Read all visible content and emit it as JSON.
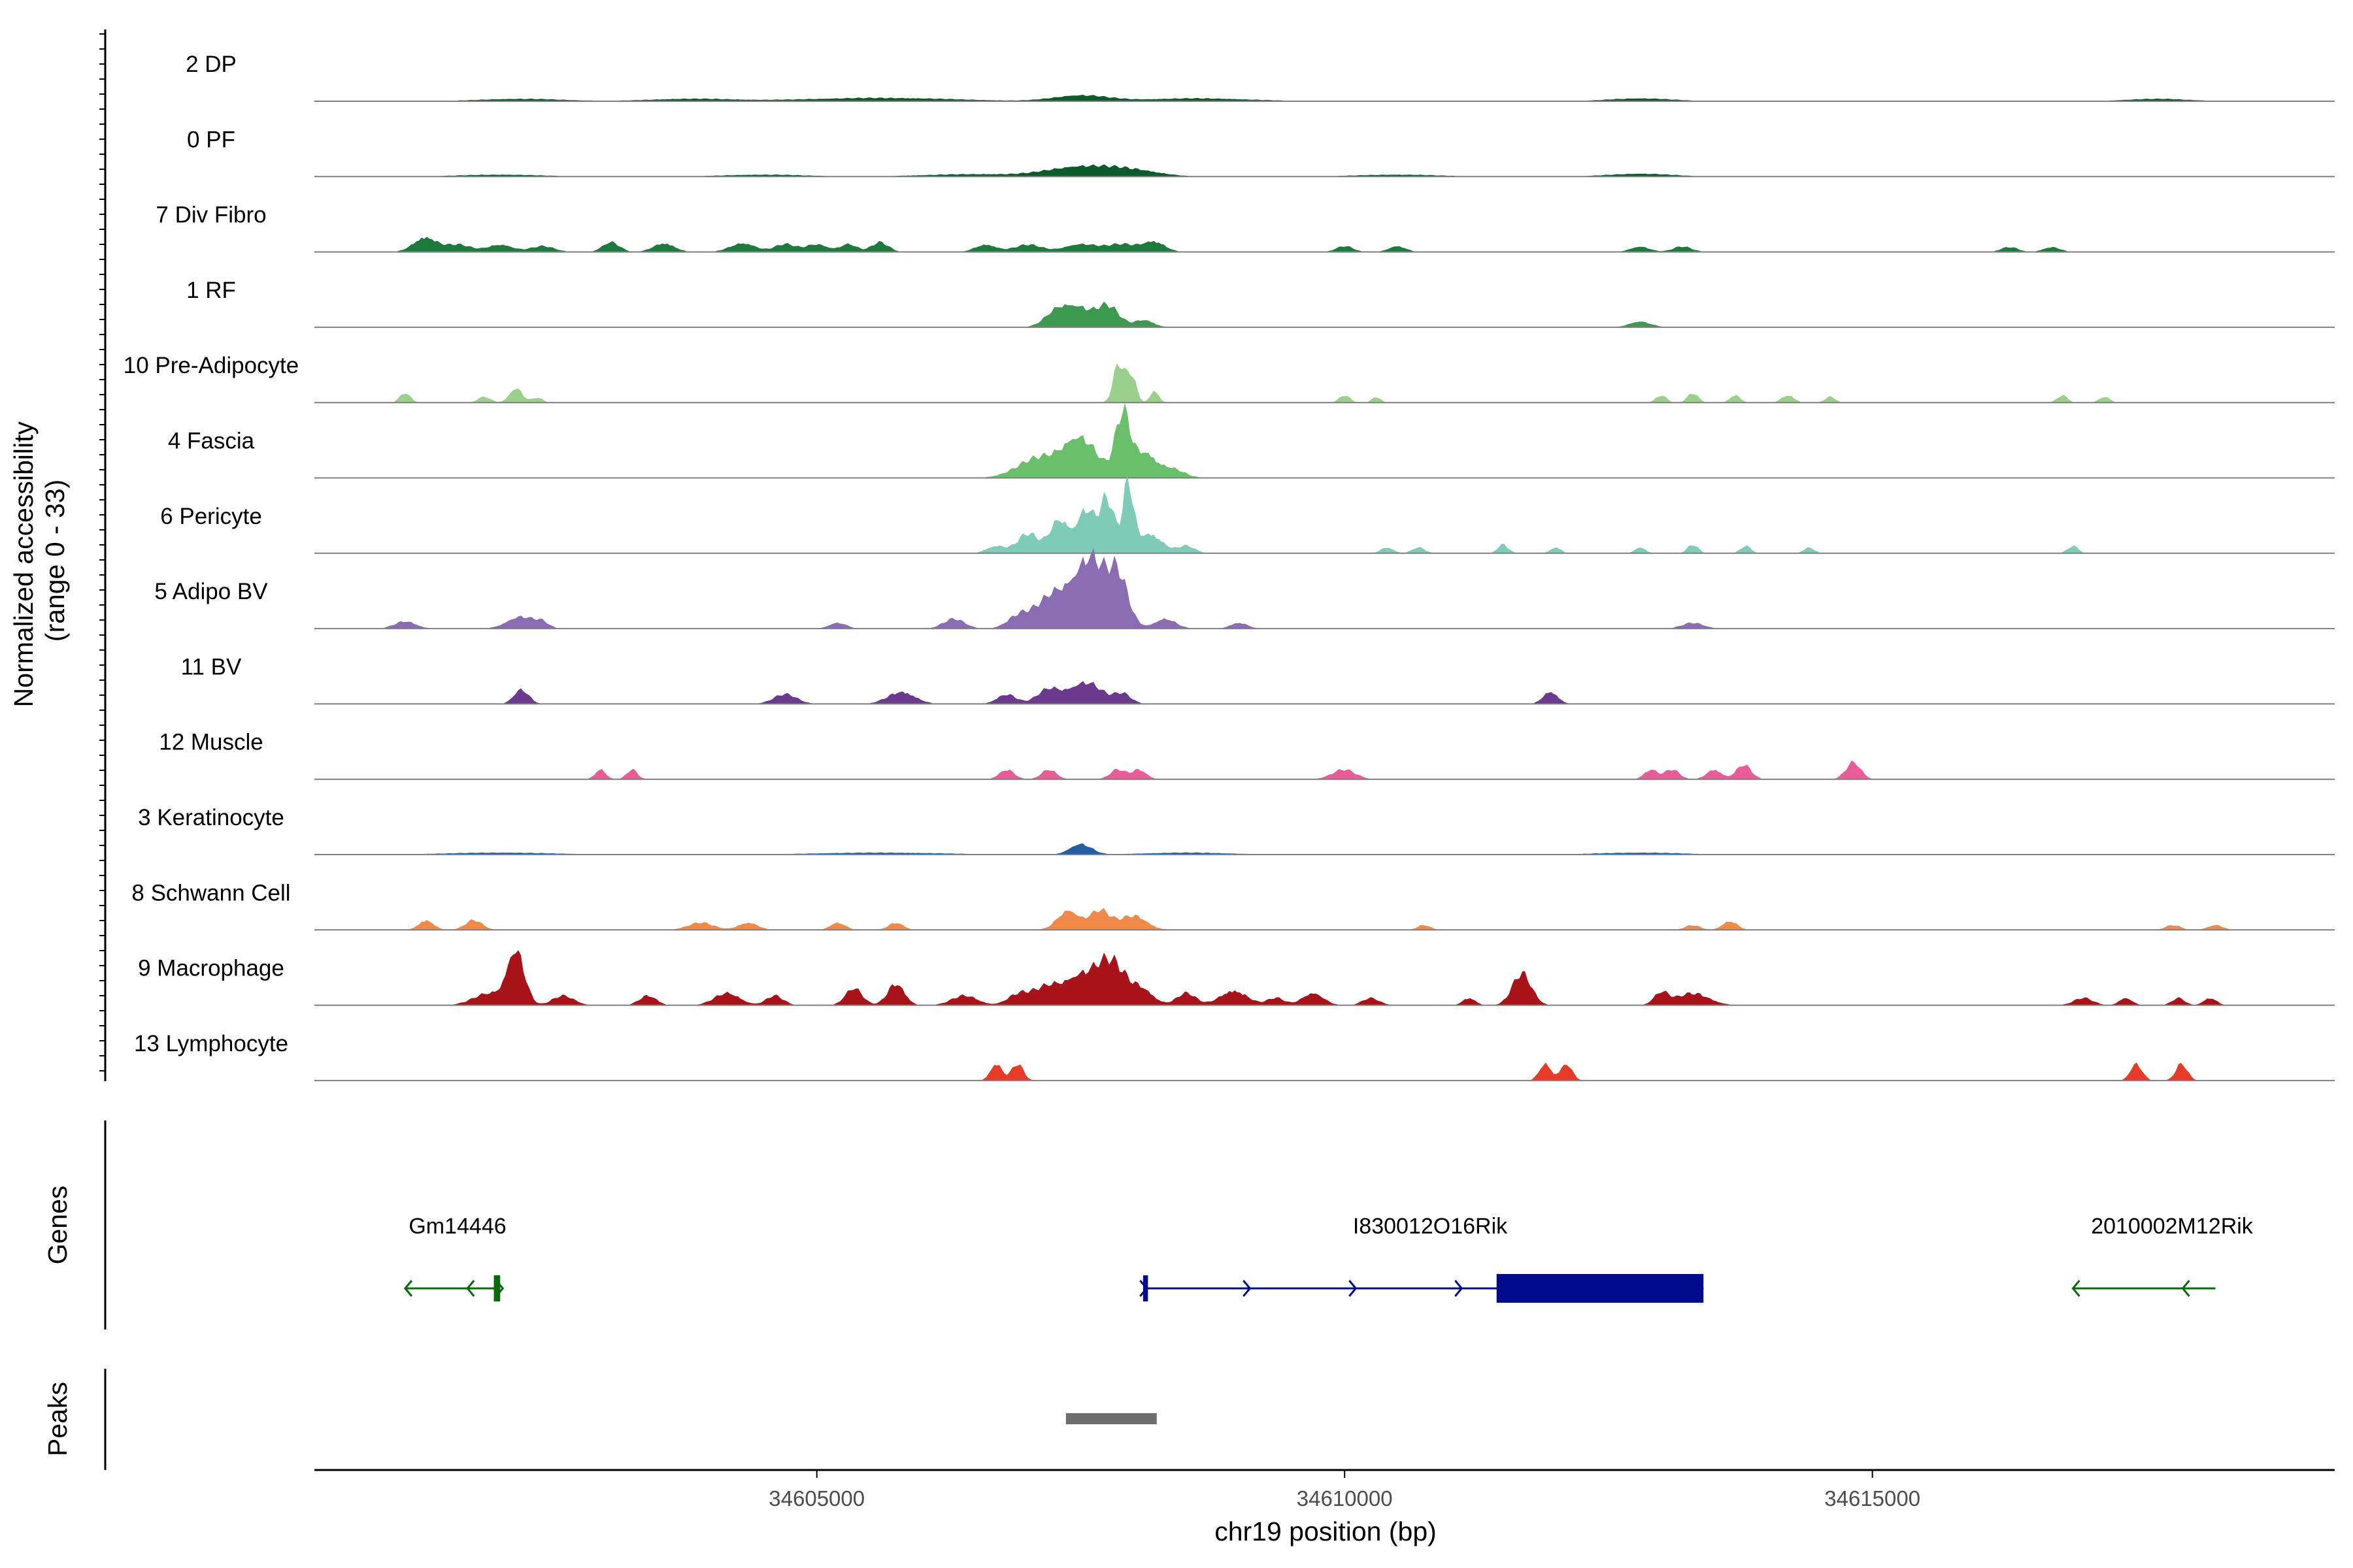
{
  "chart_data": {
    "type": "area",
    "title": "",
    "xlabel": "chr19 position (bp)",
    "ylabel_line1": "Normalized accessibility",
    "ylabel_line2": "(range 0 - 33)",
    "y_range": [
      0,
      33
    ],
    "x_range": [
      34600240,
      34619380
    ],
    "x_ticks": [
      34605000,
      34610000,
      34615000
    ],
    "x_tick_labels": [
      "34605000",
      "34610000",
      "34615000"
    ],
    "tracks": [
      {
        "name": "2 DP",
        "color": "#0b5c2a",
        "peaks": [
          [
            34602200,
            400,
            0.5
          ],
          [
            34603800,
            400,
            0.5
          ],
          [
            34605600,
            700,
            0.7
          ],
          [
            34607500,
            250,
            1.2
          ],
          [
            34608600,
            500,
            0.6
          ],
          [
            34612800,
            300,
            0.6
          ],
          [
            34617700,
            300,
            0.5
          ]
        ]
      },
      {
        "name": "0 PF",
        "color": "#0b5c2a",
        "peaks": [
          [
            34602000,
            400,
            0.4
          ],
          [
            34604500,
            400,
            0.4
          ],
          [
            34606500,
            500,
            0.5
          ],
          [
            34607500,
            300,
            2.0
          ],
          [
            34608000,
            250,
            1.2
          ],
          [
            34610500,
            400,
            0.4
          ],
          [
            34612800,
            300,
            0.6
          ]
        ]
      },
      {
        "name": "7 Div Fibro",
        "color": "#1c7a3c",
        "peaks": [
          [
            34601290,
            110,
            3.0
          ],
          [
            34601600,
            120,
            1.5
          ],
          [
            34602000,
            120,
            1.5
          ],
          [
            34602400,
            110,
            1.2
          ],
          [
            34603050,
            80,
            2.0
          ],
          [
            34603550,
            100,
            1.8
          ],
          [
            34604300,
            120,
            1.8
          ],
          [
            34604700,
            100,
            1.6
          ],
          [
            34605000,
            100,
            1.6
          ],
          [
            34605300,
            80,
            1.6
          ],
          [
            34605600,
            80,
            2.0
          ],
          [
            34606600,
            100,
            1.5
          ],
          [
            34607000,
            130,
            1.5
          ],
          [
            34607500,
            150,
            1.6
          ],
          [
            34607900,
            150,
            1.6
          ],
          [
            34608200,
            100,
            2.0
          ],
          [
            34610000,
            80,
            1.2
          ],
          [
            34610500,
            80,
            1.2
          ],
          [
            34612800,
            90,
            1.1
          ],
          [
            34613200,
            90,
            1.1
          ],
          [
            34616300,
            80,
            1.0
          ],
          [
            34616700,
            80,
            1.0
          ]
        ]
      },
      {
        "name": "1 RF",
        "color": "#3b9a4f",
        "peaks": [
          [
            34607300,
            120,
            4.0
          ],
          [
            34607500,
            100,
            3.0
          ],
          [
            34607750,
            110,
            4.5
          ],
          [
            34608100,
            90,
            1.5
          ],
          [
            34612800,
            100,
            1.2
          ]
        ]
      },
      {
        "name": "10 Pre-Adipocyte",
        "color": "#9bd08c",
        "peaks": [
          [
            34601100,
            50,
            2.0
          ],
          [
            34601850,
            60,
            1.2
          ],
          [
            34602150,
            60,
            3.0
          ],
          [
            34602350,
            50,
            1.0
          ],
          [
            34607860,
            50,
            8.0
          ],
          [
            34607980,
            45,
            6.0
          ],
          [
            34608200,
            40,
            2.5
          ],
          [
            34610000,
            50,
            1.5
          ],
          [
            34610300,
            40,
            1.2
          ],
          [
            34613000,
            50,
            1.5
          ],
          [
            34613300,
            50,
            2.0
          ],
          [
            34613700,
            50,
            1.5
          ],
          [
            34614200,
            60,
            1.5
          ],
          [
            34614600,
            50,
            1.2
          ],
          [
            34616800,
            50,
            1.5
          ],
          [
            34617200,
            50,
            1.2
          ]
        ]
      },
      {
        "name": "4 Fascia",
        "color": "#6abf6a",
        "peaks": [
          [
            34607100,
            200,
            4.0
          ],
          [
            34607500,
            160,
            8.0
          ],
          [
            34607900,
            70,
            13.0
          ],
          [
            34608100,
            100,
            5.0
          ],
          [
            34608350,
            120,
            2.0
          ]
        ]
      },
      {
        "name": "6 Pericyte",
        "color": "#7ecbb8",
        "peaks": [
          [
            34606700,
            90,
            1.5
          ],
          [
            34607000,
            100,
            4.0
          ],
          [
            34607300,
            90,
            7.0
          ],
          [
            34607550,
            80,
            9.0
          ],
          [
            34607750,
            70,
            11.0
          ],
          [
            34607950,
            50,
            14.0
          ],
          [
            34608150,
            120,
            4.0
          ],
          [
            34608500,
            80,
            1.5
          ],
          [
            34610400,
            60,
            1.2
          ],
          [
            34610700,
            60,
            1.2
          ],
          [
            34611500,
            50,
            1.8
          ],
          [
            34612000,
            50,
            1.2
          ],
          [
            34612800,
            50,
            1.2
          ],
          [
            34613300,
            50,
            1.8
          ],
          [
            34613800,
            50,
            1.5
          ],
          [
            34614400,
            50,
            1.2
          ],
          [
            34616900,
            50,
            1.5
          ]
        ]
      },
      {
        "name": "5 Adipo BV",
        "color": "#8a6cb2",
        "peaks": [
          [
            34601100,
            100,
            1.5
          ],
          [
            34602200,
            130,
            2.5
          ],
          [
            34602400,
            60,
            1.0
          ],
          [
            34605200,
            80,
            1.2
          ],
          [
            34606300,
            100,
            2.0
          ],
          [
            34606900,
            100,
            2.0
          ],
          [
            34607300,
            200,
            8.0
          ],
          [
            34607600,
            120,
            12.0
          ],
          [
            34607850,
            100,
            11.0
          ],
          [
            34608300,
            100,
            2.0
          ],
          [
            34609000,
            80,
            1.2
          ],
          [
            34613300,
            100,
            1.2
          ]
        ]
      },
      {
        "name": "11 BV",
        "color": "#6b3a8f",
        "peaks": [
          [
            34602200,
            70,
            3.0
          ],
          [
            34604700,
            110,
            2.0
          ],
          [
            34605800,
            130,
            2.5
          ],
          [
            34606800,
            90,
            2.0
          ],
          [
            34607200,
            110,
            3.0
          ],
          [
            34607550,
            150,
            4.5
          ],
          [
            34607900,
            80,
            2.0
          ],
          [
            34611950,
            70,
            2.5
          ]
        ]
      },
      {
        "name": "12 Muscle",
        "color": "#e95c97",
        "peaks": [
          [
            34602950,
            50,
            2.0
          ],
          [
            34603250,
            50,
            2.0
          ],
          [
            34606800,
            70,
            2.0
          ],
          [
            34607200,
            70,
            2.0
          ],
          [
            34607850,
            70,
            2.0
          ],
          [
            34608050,
            70,
            2.0
          ],
          [
            34609990,
            110,
            2.0
          ],
          [
            34612900,
            60,
            2.0
          ],
          [
            34613100,
            70,
            2.0
          ],
          [
            34613500,
            70,
            2.0
          ],
          [
            34613780,
            70,
            3.0
          ],
          [
            34614820,
            70,
            3.5
          ]
        ]
      },
      {
        "name": "3 Keratinocyte",
        "color": "#245ea0",
        "peaks": [
          [
            34602000,
            500,
            0.4
          ],
          [
            34605600,
            600,
            0.4
          ],
          [
            34607500,
            100,
            2.2
          ],
          [
            34608500,
            400,
            0.4
          ],
          [
            34612800,
            400,
            0.4
          ]
        ]
      },
      {
        "name": "8 Schwann Cell",
        "color": "#f08a4b",
        "peaks": [
          [
            34601300,
            70,
            2.0
          ],
          [
            34601750,
            80,
            2.0
          ],
          [
            34603900,
            120,
            1.5
          ],
          [
            34604350,
            90,
            1.5
          ],
          [
            34605200,
            70,
            1.5
          ],
          [
            34605750,
            70,
            1.5
          ],
          [
            34607380,
            100,
            4.0
          ],
          [
            34607680,
            100,
            4.0
          ],
          [
            34608000,
            120,
            3.0
          ],
          [
            34610750,
            60,
            1.0
          ],
          [
            34613300,
            70,
            1.0
          ],
          [
            34613650,
            70,
            1.8
          ],
          [
            34617850,
            70,
            1.0
          ],
          [
            34618250,
            70,
            1.0
          ]
        ]
      },
      {
        "name": "9 Macrophage",
        "color": "#a8131a",
        "peaks": [
          [
            34601900,
            150,
            2.5
          ],
          [
            34602150,
            80,
            11.0
          ],
          [
            34602600,
            100,
            2.0
          ],
          [
            34603400,
            80,
            2.0
          ],
          [
            34604150,
            120,
            2.5
          ],
          [
            34604600,
            80,
            2.0
          ],
          [
            34605350,
            80,
            3.5
          ],
          [
            34605750,
            80,
            4.5
          ],
          [
            34606400,
            120,
            2.0
          ],
          [
            34606900,
            100,
            2.0
          ],
          [
            34607200,
            150,
            4.0
          ],
          [
            34607500,
            130,
            5.0
          ],
          [
            34607780,
            140,
            9.0
          ],
          [
            34608080,
            110,
            3.0
          ],
          [
            34608500,
            90,
            2.5
          ],
          [
            34608950,
            130,
            3.0
          ],
          [
            34609350,
            80,
            1.5
          ],
          [
            34609700,
            100,
            2.5
          ],
          [
            34610250,
            80,
            1.5
          ],
          [
            34611180,
            60,
            1.5
          ],
          [
            34611680,
            90,
            6.5
          ],
          [
            34613000,
            70,
            2.5
          ],
          [
            34613300,
            150,
            2.5
          ],
          [
            34617000,
            90,
            1.5
          ],
          [
            34617400,
            60,
            1.5
          ],
          [
            34617900,
            60,
            1.5
          ],
          [
            34618200,
            60,
            1.5
          ]
        ]
      },
      {
        "name": "13 Lymphocyte",
        "color": "#e53b28",
        "peaks": [
          [
            34606700,
            55,
            3.5
          ],
          [
            34606900,
            55,
            3.5
          ],
          [
            34611900,
            55,
            3.5
          ],
          [
            34612100,
            55,
            3.5
          ],
          [
            34617500,
            55,
            3.5
          ],
          [
            34617930,
            55,
            3.5
          ]
        ]
      }
    ],
    "genes_label": "Genes",
    "genes": [
      {
        "name": "Gm14446",
        "color": "#0a6a0a",
        "strand": "-",
        "start": 34601100,
        "end": 34602000,
        "exons": [
          [
            34601940,
            34602000
          ]
        ]
      },
      {
        "name": "I830012O16Rik",
        "color": "#000c8c",
        "strand": "+",
        "start": 34608100,
        "end": 34613400,
        "exons": [
          [
            34608100,
            34608120
          ],
          [
            34611440,
            34613400
          ]
        ]
      },
      {
        "name": "2010002M12Rik",
        "color": "#0a6a0a",
        "strand": "-",
        "start": 34616900,
        "end": 34618250,
        "exons": []
      }
    ],
    "peaks_label": "Peaks",
    "peak_regions": [
      [
        34607360,
        34608220
      ]
    ],
    "peak_color": "#6d6d6d"
  }
}
